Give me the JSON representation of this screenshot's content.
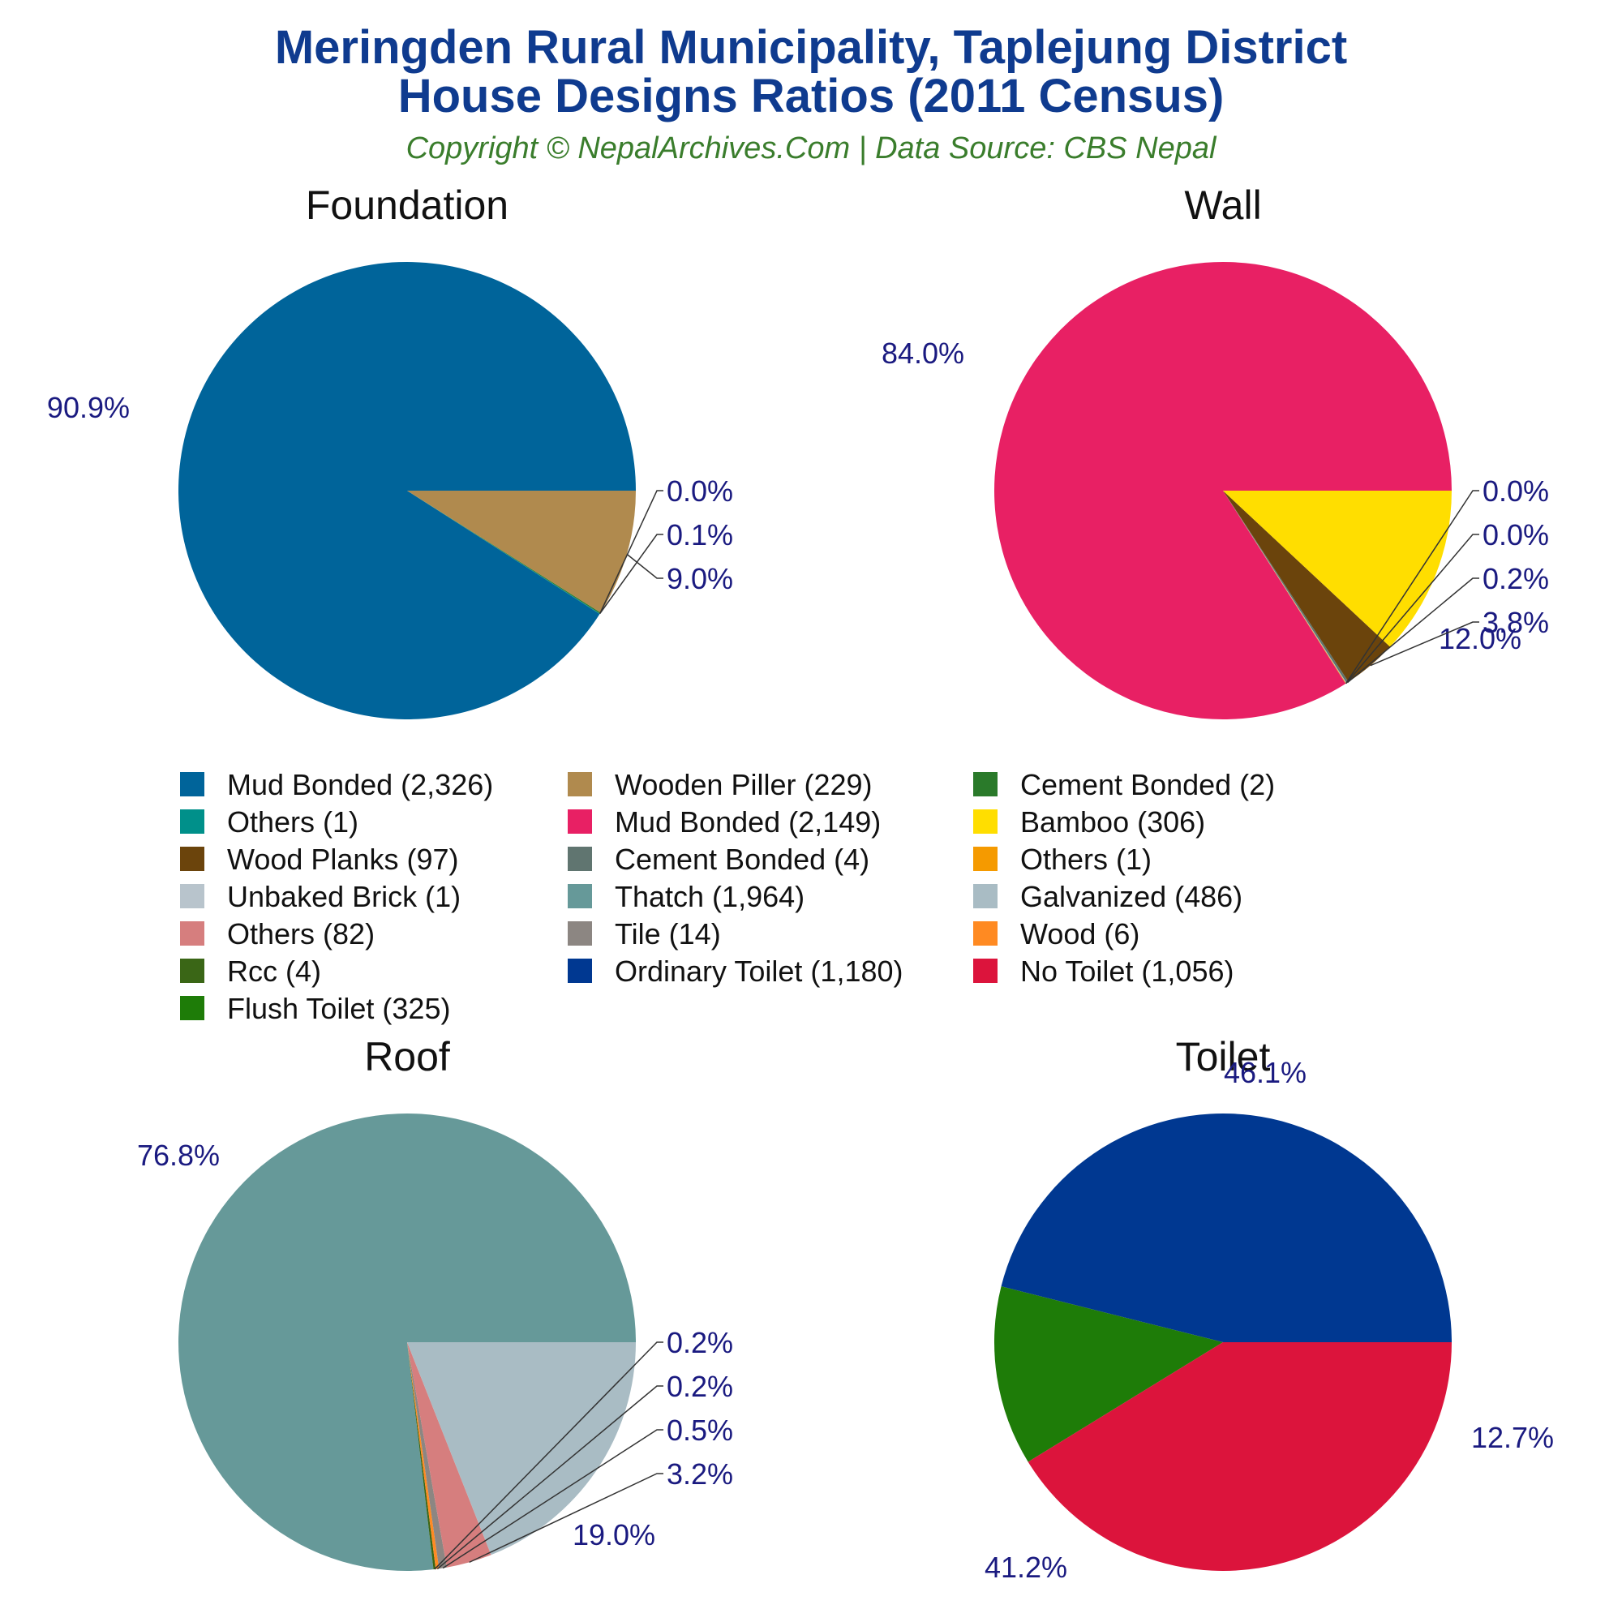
{
  "title_line1": "Meringden Rural Municipality, Taplejung District",
  "title_line2": "House Designs Ratios (2011 Census)",
  "subtitle": "Copyright © NepalArchives.Com | Data Source: CBS Nepal",
  "chart_data": [
    {
      "type": "pie",
      "title": "Foundation",
      "slices": [
        {
          "label": "Mud Bonded (2,326)",
          "value": 2326,
          "pct": "90.9%",
          "color": "#00649a"
        },
        {
          "label": "Others (1)",
          "value": 1,
          "pct": "0.0%",
          "color": "#00908a"
        },
        {
          "label": "Cement Bonded (2)",
          "value": 2,
          "pct": "0.1%",
          "color": "#2a7a2a"
        },
        {
          "label": "Wooden Piller (229)",
          "value": 229,
          "pct": "9.0%",
          "color": "#b08a4e"
        }
      ]
    },
    {
      "type": "pie",
      "title": "Wall",
      "slices": [
        {
          "label": "Mud Bonded (2,149)",
          "value": 2149,
          "pct": "84.0%",
          "color": "#e82064"
        },
        {
          "label": "Others (1)",
          "value": 1,
          "pct": "0.0%",
          "color": "#f59a00"
        },
        {
          "label": "Unbaked Brick (1)",
          "value": 1,
          "pct": "0.0%",
          "color": "#b8c4cc"
        },
        {
          "label": "Cement Bonded (4)",
          "value": 4,
          "pct": "0.2%",
          "color": "#607570"
        },
        {
          "label": "Wood Planks (97)",
          "value": 97,
          "pct": "3.8%",
          "color": "#6b440c"
        },
        {
          "label": "Bamboo (306)",
          "value": 306,
          "pct": "12.0%",
          "color": "#ffde00"
        }
      ]
    },
    {
      "type": "pie",
      "title": "Roof",
      "slices": [
        {
          "label": "Thatch (1,964)",
          "value": 1964,
          "pct": "76.8%",
          "color": "#669999"
        },
        {
          "label": "Rcc (4)",
          "value": 4,
          "pct": "0.2%",
          "color": "#3a6616"
        },
        {
          "label": "Wood (6)",
          "value": 6,
          "pct": "0.2%",
          "color": "#ff8a22"
        },
        {
          "label": "Tile (14)",
          "value": 14,
          "pct": "0.5%",
          "color": "#8c8682"
        },
        {
          "label": "Others (82)",
          "value": 82,
          "pct": "3.2%",
          "color": "#d67e7e"
        },
        {
          "label": "Galvanized (486)",
          "value": 486,
          "pct": "19.0%",
          "color": "#a9bcc4"
        }
      ]
    },
    {
      "type": "pie",
      "title": "Toilet",
      "slices": [
        {
          "label": "Ordinary Toilet (1,180)",
          "value": 1180,
          "pct": "46.1%",
          "color": "#003891"
        },
        {
          "label": "Flush Toilet (325)",
          "value": 325,
          "pct": "12.7%",
          "color": "#1e7c08"
        },
        {
          "label": "No Toilet (1,056)",
          "value": 1056,
          "pct": "41.2%",
          "color": "#dc143c"
        }
      ]
    }
  ],
  "legend": [
    {
      "label": "Mud Bonded (2,326)",
      "color": "#00649a"
    },
    {
      "label": "Wooden Piller (229)",
      "color": "#b08a4e"
    },
    {
      "label": "Cement Bonded (2)",
      "color": "#2a7a2a"
    },
    {
      "label": "Others (1)",
      "color": "#00908a"
    },
    {
      "label": "Mud Bonded (2,149)",
      "color": "#e82064"
    },
    {
      "label": "Bamboo (306)",
      "color": "#ffde00"
    },
    {
      "label": "Wood Planks (97)",
      "color": "#6b440c"
    },
    {
      "label": "Cement Bonded (4)",
      "color": "#607570"
    },
    {
      "label": "Others (1)",
      "color": "#f59a00"
    },
    {
      "label": "Unbaked Brick (1)",
      "color": "#b8c4cc"
    },
    {
      "label": "Thatch (1,964)",
      "color": "#669999"
    },
    {
      "label": "Galvanized (486)",
      "color": "#a9bcc4"
    },
    {
      "label": "Others (82)",
      "color": "#d67e7e"
    },
    {
      "label": "Tile (14)",
      "color": "#8c8682"
    },
    {
      "label": "Wood (6)",
      "color": "#ff8a22"
    },
    {
      "label": "Rcc (4)",
      "color": "#3a6616"
    },
    {
      "label": "Ordinary Toilet (1,180)",
      "color": "#003891"
    },
    {
      "label": "No Toilet (1,056)",
      "color": "#dc143c"
    },
    {
      "label": "Flush Toilet (325)",
      "color": "#1e7c08"
    }
  ]
}
